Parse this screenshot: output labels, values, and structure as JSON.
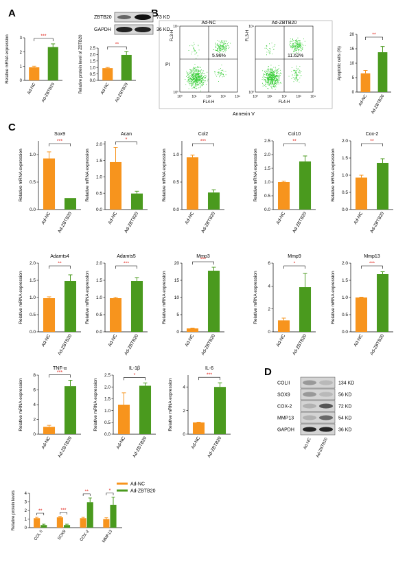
{
  "panel_labels": {
    "A": "A",
    "B": "B",
    "C": "C",
    "D": "D"
  },
  "colors": {
    "orange": "#f7941d",
    "green": "#4a9a1e",
    "sig": "#e2231a",
    "dot": "#33cc33"
  },
  "western_A": {
    "bands": [
      {
        "name": "ZBTB20",
        "kd": "73 KD"
      },
      {
        "name": "GAPDH",
        "kd": "36 KD"
      }
    ]
  },
  "western_D": {
    "bands": [
      {
        "name": "COLII",
        "kd": "134 KD"
      },
      {
        "name": "SOX9",
        "kd": "56 KD"
      },
      {
        "name": "COX-2",
        "kd": "72 KD"
      },
      {
        "name": "MMP13",
        "kd": "54 KD"
      },
      {
        "name": "GAPDH",
        "kd": "36 KD"
      }
    ],
    "lanes": [
      "Ad-NC",
      "Ad-ZBTB20"
    ]
  },
  "flow": {
    "plots": [
      {
        "title": "Ad-NC",
        "percent": "5.96%"
      },
      {
        "title": "Ad-ZBTB20",
        "percent": "11.62%"
      }
    ],
    "xlabel": "Annexin V",
    "ylabel": "PI",
    "axis_x": "FL4-H",
    "axis_y": "FL3-H",
    "ticks": [
      "10⁰",
      "10¹",
      "10²",
      "10³",
      "10⁴"
    ]
  },
  "chart_data": [
    {
      "id": "A1",
      "type": "bar",
      "categories": [
        "Ad-NC",
        "Ad-ZBTB20"
      ],
      "values": [
        0.92,
        2.35
      ],
      "errors": [
        0.08,
        0.22
      ],
      "ylabel": "Relative mRNA expression",
      "ylim": [
        0,
        3
      ],
      "yticks": [
        "0",
        "1",
        "2",
        "3"
      ],
      "sig": "***"
    },
    {
      "id": "A2",
      "type": "bar",
      "categories": [
        "Ad-NC",
        "Ad-ZBTB20"
      ],
      "values": [
        0.95,
        1.97
      ],
      "errors": [
        0.05,
        0.27
      ],
      "ylabel": "Relative protein level of ZBTB20",
      "ylim": [
        0,
        2.5
      ],
      "yticks": [
        "0.0",
        "0.5",
        "1.0",
        "1.5",
        "2.0",
        "2.5"
      ],
      "sig": "**"
    },
    {
      "id": "B1",
      "type": "bar",
      "categories": [
        "Ad-NC",
        "Ad-ZBTB20"
      ],
      "values": [
        6.5,
        13.8
      ],
      "errors": [
        1.0,
        2.0
      ],
      "ylabel": "Apoptotic cells (%)",
      "ylim": [
        0,
        20
      ],
      "yticks": [
        "0",
        "5",
        "10",
        "15",
        "20"
      ],
      "sig": "**"
    },
    {
      "id": "C1",
      "type": "bar",
      "title": "Sox9",
      "categories": [
        "Ad-NC",
        "Ad-ZBTB20"
      ],
      "values": [
        0.93,
        0.21
      ],
      "errors": [
        0.12,
        0.0
      ],
      "ylabel": "Relative mRNA expression",
      "ylim": [
        0,
        1.25
      ],
      "yticks": [
        "0.0",
        "0.5",
        "1.0"
      ],
      "sig": "***"
    },
    {
      "id": "C2",
      "type": "bar",
      "title": "Acan",
      "categories": [
        "Ad-NC",
        "Ad-ZBTB20"
      ],
      "values": [
        1.45,
        0.49
      ],
      "errors": [
        0.45,
        0.07
      ],
      "ylabel": "Relative mRNA expression",
      "ylim": [
        0,
        2.1
      ],
      "yticks": [
        "0.0",
        "0.5",
        "1.0",
        "1.5",
        "2.0"
      ],
      "sig": "*"
    },
    {
      "id": "C3",
      "type": "bar",
      "title": "Col2",
      "categories": [
        "Ad-NC",
        "Ad-ZBTB20"
      ],
      "values": [
        0.95,
        0.31
      ],
      "errors": [
        0.04,
        0.05
      ],
      "ylabel": "Relative mRNA expression",
      "ylim": [
        0,
        1.25
      ],
      "yticks": [
        "0.0",
        "0.5",
        "1.0"
      ],
      "sig": "***"
    },
    {
      "id": "C4",
      "type": "bar",
      "title": "Col10",
      "categories": [
        "Ad-NC",
        "Ad-ZBTB20"
      ],
      "values": [
        1.0,
        1.75
      ],
      "errors": [
        0.03,
        0.2
      ],
      "ylabel": "Relative mRNA expression",
      "ylim": [
        0,
        2.5
      ],
      "yticks": [
        "0.0",
        "0.5",
        "1.0",
        "1.5",
        "2.0",
        "2.5"
      ],
      "sig": "**"
    },
    {
      "id": "C5",
      "type": "bar",
      "title": "Cox-2",
      "categories": [
        "Ad-NC",
        "Ad-ZBTB20"
      ],
      "values": [
        0.93,
        1.36
      ],
      "errors": [
        0.07,
        0.12
      ],
      "ylabel": "Relative mRNA expression",
      "ylim": [
        0,
        2.0
      ],
      "yticks": [
        "0.0",
        "0.5",
        "1.0",
        "1.5",
        "2.0"
      ],
      "sig": "**"
    },
    {
      "id": "C6",
      "type": "bar",
      "title": "Adamts4",
      "categories": [
        "Ad-NC",
        "Ad-ZBTB20"
      ],
      "values": [
        0.98,
        1.48
      ],
      "errors": [
        0.04,
        0.18
      ],
      "ylabel": "Relative mRNA expression",
      "ylim": [
        0,
        2.0
      ],
      "yticks": [
        "0.0",
        "0.5",
        "1.0",
        "1.5",
        "2.0"
      ],
      "sig": "**"
    },
    {
      "id": "C7",
      "type": "bar",
      "title": "Adamts5",
      "categories": [
        "Ad-NC",
        "Ad-ZBTB20"
      ],
      "values": [
        0.98,
        1.48
      ],
      "errors": [
        0.02,
        0.1
      ],
      "ylabel": "Relative mRNA expression",
      "ylim": [
        0,
        2.0
      ],
      "yticks": [
        "0.0",
        "0.5",
        "1.0",
        "1.5",
        "2.0"
      ],
      "sig": "***"
    },
    {
      "id": "C8",
      "type": "bar",
      "title": "Mmp3",
      "categories": [
        "Ad-NC",
        "Ad-ZBTB20"
      ],
      "values": [
        1.0,
        17.8
      ],
      "errors": [
        0.1,
        1.0
      ],
      "ylabel": "Relative mRNA expression",
      "ylim": [
        0,
        20
      ],
      "yticks": [
        "0",
        "5",
        "10",
        "15",
        "20"
      ],
      "sig": "***"
    },
    {
      "id": "C9",
      "type": "bar",
      "title": "Mmp9",
      "categories": [
        "Ad-NC",
        "Ad-ZBTB20"
      ],
      "values": [
        1.0,
        3.9
      ],
      "errors": [
        0.2,
        1.2
      ],
      "ylabel": "Relative mRNA expression",
      "ylim": [
        0,
        6
      ],
      "yticks": [
        "0",
        "2",
        "4",
        "6"
      ],
      "sig": "*"
    },
    {
      "id": "C10",
      "type": "bar",
      "title": "Mmp13",
      "categories": [
        "Ad-NC",
        "Ad-ZBTB20"
      ],
      "values": [
        1.0,
        1.68
      ],
      "errors": [
        0.01,
        0.07
      ],
      "ylabel": "Relative mRNA expression",
      "ylim": [
        0,
        2.0
      ],
      "yticks": [
        "0.0",
        "0.5",
        "1.0",
        "1.5",
        "2.0"
      ],
      "sig": "***"
    },
    {
      "id": "C11",
      "type": "bar",
      "title": "TNF-α",
      "categories": [
        "Ad-NC",
        "Ad-ZBTB20"
      ],
      "values": [
        1.0,
        6.5
      ],
      "errors": [
        0.2,
        0.8
      ],
      "ylabel": "Relative mRNA expression",
      "ylim": [
        0,
        8
      ],
      "yticks": [
        "0",
        "2",
        "4",
        "6",
        "8"
      ],
      "sig": "***"
    },
    {
      "id": "C12",
      "type": "bar",
      "title": "IL-1β",
      "categories": [
        "Ad-NC",
        "Ad-ZBTB20"
      ],
      "values": [
        1.25,
        2.05
      ],
      "errors": [
        0.5,
        0.12
      ],
      "ylabel": "Relative mRNA expression",
      "ylim": [
        0,
        2.5
      ],
      "yticks": [
        "0.0",
        "0.5",
        "1.0",
        "1.5",
        "2.0",
        "2.5"
      ],
      "sig": "*"
    },
    {
      "id": "C13",
      "type": "bar",
      "title": "IL-6",
      "categories": [
        "Ad-NC",
        "Ad-ZBTB20"
      ],
      "values": [
        1.0,
        4.0
      ],
      "errors": [
        0.02,
        0.35
      ],
      "ylabel": "Relative mRNA expression",
      "ylim": [
        0,
        5
      ],
      "yticks": [
        "0",
        "2",
        "4"
      ],
      "sig": "***"
    },
    {
      "id": "D1",
      "type": "bar",
      "categories": [
        "COL II",
        "SOX9",
        "COX-2",
        "MMP13"
      ],
      "series": [
        {
          "name": "Ad-NC",
          "values": [
            1.1,
            1.2,
            1.1,
            1.0
          ],
          "errors": [
            0.1,
            0.1,
            0.1,
            0.15
          ]
        },
        {
          "name": "Ad-ZBTB20",
          "values": [
            0.3,
            0.3,
            2.95,
            2.65
          ],
          "errors": [
            0.1,
            0.1,
            0.5,
            0.9
          ]
        }
      ],
      "sig": [
        "**",
        "***",
        "**",
        "*"
      ],
      "ylabel": "Relative protein levels",
      "ylim": [
        0,
        4
      ],
      "yticks": [
        "0",
        "1",
        "2",
        "3",
        "4"
      ],
      "legend": "top-right"
    }
  ]
}
